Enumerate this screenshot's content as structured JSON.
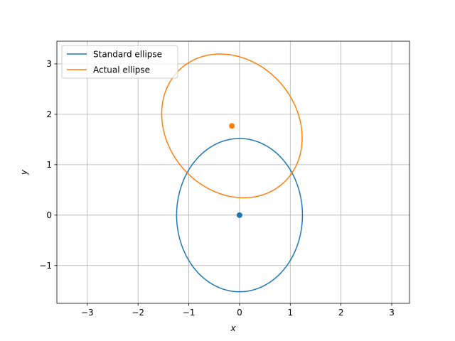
{
  "chart_data": {
    "type": "line",
    "xlabel": "x",
    "ylabel": "y",
    "xlim": [
      -3.6,
      3.35
    ],
    "ylim": [
      -1.75,
      3.45
    ],
    "xticks": [
      -3,
      -2,
      -1,
      0,
      1,
      2,
      3
    ],
    "yticks": [
      -1,
      0,
      1,
      2,
      3
    ],
    "xtick_labels": [
      "−3",
      "−2",
      "−1",
      "0",
      "1",
      "2",
      "3"
    ],
    "ytick_labels": [
      "−1",
      "0",
      "1",
      "2",
      "3"
    ],
    "grid": true,
    "legend_position": "upper-left",
    "series": [
      {
        "name": "Standard ellipse",
        "color": "#1f77b4",
        "center": [
          0.0,
          0.0
        ],
        "semi_axes": [
          1.24,
          1.52
        ],
        "rotation_deg": 0
      },
      {
        "name": "Actual ellipse",
        "color": "#ff7f0e",
        "center": [
          -0.15,
          1.77
        ],
        "semi_axes": [
          1.28,
          1.52
        ],
        "rotation_deg": 40
      }
    ],
    "center_points": [
      {
        "x": 0.0,
        "y": 0.0,
        "color": "#1f77b4"
      },
      {
        "x": -0.15,
        "y": 1.77,
        "color": "#ff7f0e"
      }
    ]
  }
}
